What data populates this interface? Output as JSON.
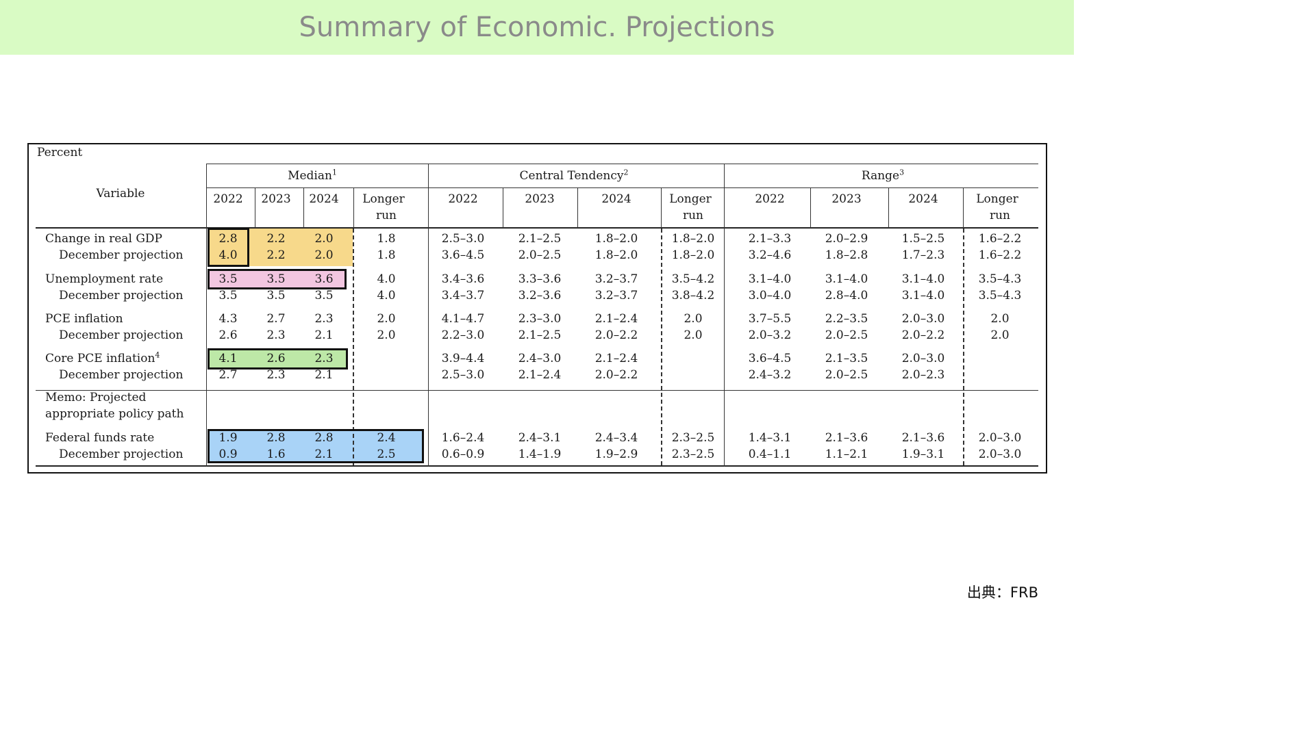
{
  "title": "Summary of Economic. Projections",
  "source": "出典：FRB",
  "table": {
    "unit": "Percent",
    "variable_header": "Variable",
    "groups": [
      {
        "label": "Median",
        "note": "1"
      },
      {
        "label": "Central Tendency",
        "note": "2"
      },
      {
        "label": "Range",
        "note": "3"
      }
    ],
    "median_years": [
      "2022",
      "2023",
      "2024",
      "Longer",
      "run"
    ],
    "ct_years": [
      "2022",
      "2023",
      "2024",
      "Longer",
      "run"
    ],
    "range_years": [
      "2022",
      "2023",
      "2024",
      "Longer",
      "run"
    ],
    "memo_line1": "Memo: Projected",
    "memo_line2": "appropriate policy path",
    "rows": [
      {
        "label": "Change in real GDP",
        "note": "",
        "median": [
          "2.8",
          "2.2",
          "2.0",
          "1.8"
        ],
        "ct": [
          "2.5–3.0",
          "2.1–2.5",
          "1.8–2.0",
          "1.8–2.0"
        ],
        "range": [
          "2.1–3.3",
          "2.0–2.9",
          "1.5–2.5",
          "1.6–2.2"
        ]
      },
      {
        "label": "December projection",
        "note": "",
        "median": [
          "4.0",
          "2.2",
          "2.0",
          "1.8"
        ],
        "ct": [
          "3.6–4.5",
          "2.0–2.5",
          "1.8–2.0",
          "1.8–2.0"
        ],
        "range": [
          "3.2–4.6",
          "1.8–2.8",
          "1.7–2.3",
          "1.6–2.2"
        ]
      },
      {
        "label": "Unemployment rate",
        "note": "",
        "median": [
          "3.5",
          "3.5",
          "3.6",
          "4.0"
        ],
        "ct": [
          "3.4–3.6",
          "3.3–3.6",
          "3.2–3.7",
          "3.5–4.2"
        ],
        "range": [
          "3.1–4.0",
          "3.1–4.0",
          "3.1–4.0",
          "3.5–4.3"
        ]
      },
      {
        "label": "December projection",
        "note": "",
        "median": [
          "3.5",
          "3.5",
          "3.5",
          "4.0"
        ],
        "ct": [
          "3.4–3.7",
          "3.2–3.6",
          "3.2–3.7",
          "3.8–4.2"
        ],
        "range": [
          "3.0–4.0",
          "2.8–4.0",
          "3.1–4.0",
          "3.5–4.3"
        ]
      },
      {
        "label": "PCE inflation",
        "note": "",
        "median": [
          "4.3",
          "2.7",
          "2.3",
          "2.0"
        ],
        "ct": [
          "4.1–4.7",
          "2.3–3.0",
          "2.1–2.4",
          "2.0"
        ],
        "range": [
          "3.7–5.5",
          "2.2–3.5",
          "2.0–3.0",
          "2.0"
        ]
      },
      {
        "label": "December projection",
        "note": "",
        "median": [
          "2.6",
          "2.3",
          "2.1",
          "2.0"
        ],
        "ct": [
          "2.2–3.0",
          "2.1–2.5",
          "2.0–2.2",
          "2.0"
        ],
        "range": [
          "2.0–3.2",
          "2.0–2.5",
          "2.0–2.2",
          "2.0"
        ]
      },
      {
        "label": "Core PCE inflation",
        "note": "4",
        "median": [
          "4.1",
          "2.6",
          "2.3",
          ""
        ],
        "ct": [
          "3.9–4.4",
          "2.4–3.0",
          "2.1–2.4",
          ""
        ],
        "range": [
          "3.6–4.5",
          "2.1–3.5",
          "2.0–3.0",
          ""
        ]
      },
      {
        "label": "December projection",
        "note": "",
        "median": [
          "2.7",
          "2.3",
          "2.1",
          ""
        ],
        "ct": [
          "2.5–3.0",
          "2.1–2.4",
          "2.0–2.2",
          ""
        ],
        "range": [
          "2.4–3.2",
          "2.0–2.5",
          "2.0–2.3",
          ""
        ]
      },
      {
        "label": "Federal funds rate",
        "note": "",
        "median": [
          "1.9",
          "2.8",
          "2.8",
          "2.4"
        ],
        "ct": [
          "1.6–2.4",
          "2.4–3.1",
          "2.4–3.4",
          "2.3–2.5"
        ],
        "range": [
          "1.4–3.1",
          "2.1–3.6",
          "2.1–3.6",
          "2.0–3.0"
        ]
      },
      {
        "label": "December projection",
        "note": "",
        "median": [
          "0.9",
          "1.6",
          "2.1",
          "2.5"
        ],
        "ct": [
          "0.6–0.9",
          "1.4–1.9",
          "1.9–2.9",
          "2.3–2.5"
        ],
        "range": [
          "0.4–1.1",
          "1.1–2.1",
          "1.9–3.1",
          "2.0–3.0"
        ]
      }
    ],
    "highlight_colors": {
      "gdp": "#f7d98b",
      "unemployment": "#f2c6e0",
      "core_pce": "#bde8a7",
      "fed_funds": "#a9d3f7"
    }
  }
}
